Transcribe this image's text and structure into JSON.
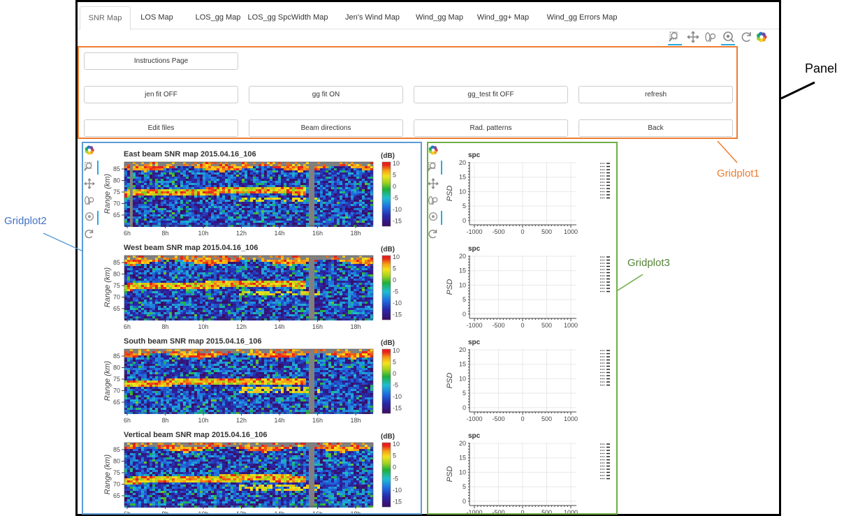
{
  "tabs": [
    {
      "label": "SNR Map",
      "active": true
    },
    {
      "label": "LOS Map"
    },
    {
      "label": "LOS_gg Map"
    },
    {
      "label": "LOS_gg SpcWidth Map"
    },
    {
      "label": "Jen's Wind Map"
    },
    {
      "label": "Wind_gg Map"
    },
    {
      "label": "Wind_gg+ Map"
    },
    {
      "label": "Wind_gg Errors Map"
    }
  ],
  "toolbar": {
    "tools": [
      "box-zoom-icon",
      "pan-icon",
      "wheel-zoom-icon",
      "reset-icon",
      "bokeh-logo-icon"
    ]
  },
  "controls": {
    "instructions": "Instructions Page",
    "jen_fit": "jen fit OFF",
    "gg_fit": "gg fit ON",
    "gg_test_fit": "gg_test fit OFF",
    "refresh": "refresh",
    "edit_files": "Edit files",
    "beam_directions": "Beam directions",
    "rad_patterns": "Rad. patterns",
    "back": "Back"
  },
  "annotations": {
    "panel": "Panel",
    "gridplot1": "Gridplot1",
    "gridplot2": "Gridplot2",
    "gridplot3": "Gridplot3"
  },
  "snr_maps": [
    {
      "title": "East beam SNR map 2015.04.16_106"
    },
    {
      "title": "West beam SNR map 2015.04.16_106"
    },
    {
      "title": "South beam SNR map 2015.04.16_106"
    },
    {
      "title": "Vertical beam SNR map 2015.04.16_106"
    }
  ],
  "snr_axes": {
    "ylabel": "Range (km)",
    "yticks": [
      "85",
      "80",
      "75",
      "70",
      "65"
    ],
    "xticks": [
      "6h",
      "8h",
      "10h",
      "12h",
      "14h",
      "16h",
      "18h"
    ],
    "colorbar_unit": "(dB)",
    "colorbar_ticks": [
      "10",
      "5",
      "0",
      "-5",
      "-10",
      "-15"
    ]
  },
  "spc_plots": [
    {
      "title": "spc"
    },
    {
      "title": "spc"
    },
    {
      "title": "spc"
    },
    {
      "title": "spc"
    }
  ],
  "spc_axes": {
    "ylabel": "PSD",
    "yticks": [
      "20",
      "15",
      "10",
      "5",
      "0"
    ],
    "xticks": [
      "-1000",
      "-500",
      "0",
      "500",
      "1000"
    ]
  },
  "colors": {
    "accent_orange": "#ed7d31",
    "accent_blue": "#5b9bd5",
    "accent_green": "#70ad47",
    "tool_blue": "#26aae1"
  }
}
